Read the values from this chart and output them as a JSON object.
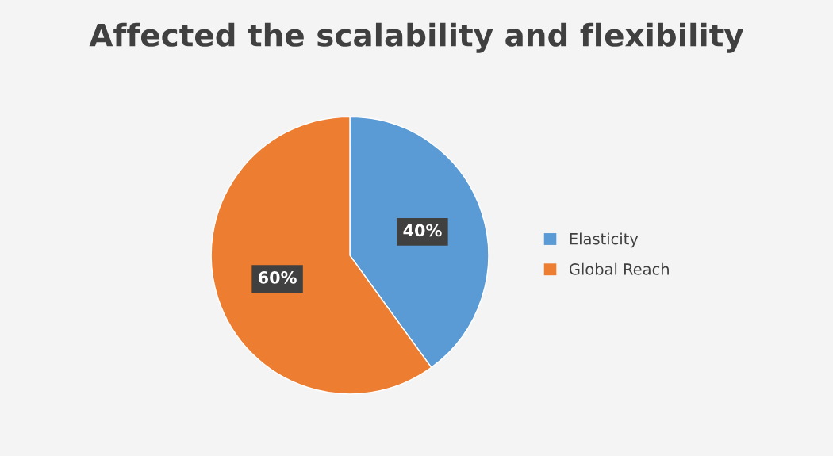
{
  "chart_data": {
    "type": "pie",
    "title": "Affected the scalability and flexibility",
    "categories": [
      "Elasticity",
      "Global Reach"
    ],
    "values": [
      40,
      60
    ],
    "colors": [
      "#5b9bd5",
      "#ed7d31"
    ],
    "value_labels": [
      "40%",
      "60%"
    ],
    "legend": "right"
  }
}
